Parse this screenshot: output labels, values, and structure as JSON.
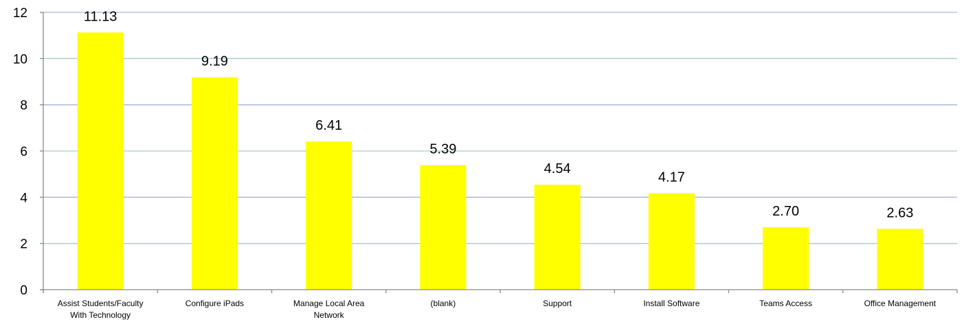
{
  "chart_data": {
    "type": "bar",
    "categories": [
      "Assist Students/Faculty With Technology",
      "Configure iPads",
      "Manage Local Area Network",
      "(blank)",
      "Support",
      "Install Software",
      "Teams Access",
      "Office Management"
    ],
    "category_lines": [
      [
        "Assist Students/Faculty",
        "With Technology"
      ],
      [
        "Configure iPads"
      ],
      [
        "Manage Local Area",
        "Network"
      ],
      [
        "(blank)"
      ],
      [
        "Support"
      ],
      [
        "Install Software"
      ],
      [
        "Teams Access"
      ],
      [
        "Office Management"
      ]
    ],
    "values": [
      11.13,
      9.19,
      6.41,
      5.39,
      4.54,
      4.17,
      2.7,
      2.63
    ],
    "data_labels": [
      "11.13",
      "9.19",
      "6.41",
      "5.39",
      "4.54",
      "4.17",
      "2.70",
      "2.63"
    ],
    "y_ticks": [
      0,
      2,
      4,
      6,
      8,
      10,
      12
    ],
    "ylim": [
      0,
      12
    ],
    "grid": true,
    "legend": "none",
    "title": "",
    "xlabel": "",
    "ylabel": "",
    "colors": {
      "bar": "#ffff00",
      "grid_blue": "#a8b3d9",
      "grid_teal": "#a6c9d1",
      "axis": "#898989"
    }
  }
}
